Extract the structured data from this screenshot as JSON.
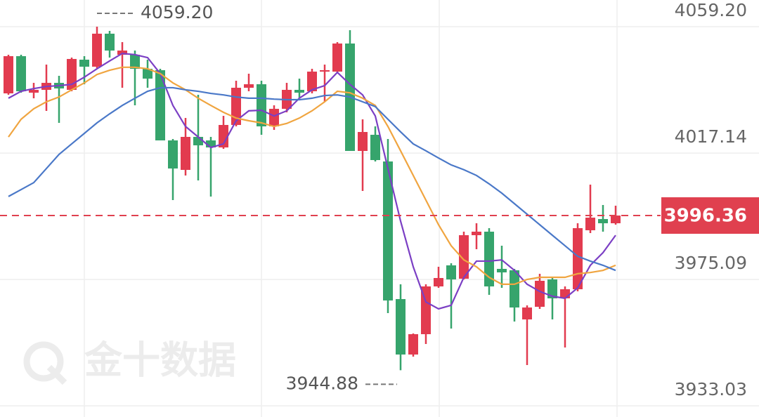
{
  "chart_data": {
    "type": "candlestick",
    "ylim": [
      3929.32,
      4068.08
    ],
    "yticks": [
      {
        "value": 4059.2,
        "label": "4059.20"
      },
      {
        "value": 4017.14,
        "label": "4017.14"
      },
      {
        "value": 3975.09,
        "label": "3975.09"
      },
      {
        "value": 3933.03,
        "label": "3933.03"
      }
    ],
    "grid": true,
    "up_color": "#e23b4f",
    "down_color": "#36a46c",
    "open": [
      4037.01,
      4049.39,
      4037.24,
      4038.18,
      4040.51,
      4038.18,
      4048.22,
      4045.89,
      4056.87,
      4049.86,
      4049.86,
      4045.19,
      4044.72,
      4021.36,
      4011.55,
      4022.53,
      4021.36,
      4019.02,
      4026.5,
      4038.88,
      4040.05,
      4026.03,
      4031.87,
      4038.18,
      4037.71,
      4044.25,
      4044.25,
      4053.6,
      4017.85,
      4023.23,
      4014.35,
      3968.56,
      3950.11,
      3956.88,
      3972.77,
      3979.78,
      3975.34,
      3989.82,
      3990.99,
      3978.61,
      3978.14,
      3961.79,
      3965.99,
      3975.1,
      3968.8,
      3971.83,
      3991.46,
      3995.19,
      3993.79
    ],
    "high": [
      4049.86,
      4049.86,
      4040.51,
      4046.59,
      4042.85,
      4048.92,
      4049.39,
      4059.2,
      4057.8,
      4054.06,
      4051.26,
      4048.22,
      4045.19,
      4021.83,
      4028.83,
      4036.54,
      4022.53,
      4029.53,
      4041.21,
      4043.55,
      4041.21,
      4033.04,
      4040.51,
      4041.92,
      4045.19,
      4046.59,
      4054.06,
      4058.03,
      4028.37,
      4026.03,
      4021.83,
      3973.47,
      3957.12,
      3973.47,
      3979.31,
      3980.48,
      3990.99,
      3993.79,
      3992.16,
      3986.32,
      3978.61,
      3966.46,
      3976.97,
      3975.8,
      3972.77,
      3993.79,
      4006.64,
      3999.87,
      3999.63
    ],
    "low": [
      4036.54,
      4037.24,
      4035.37,
      4031.17,
      4027.2,
      4037.71,
      4040.05,
      4045.42,
      4048.92,
      4038.88,
      4033.04,
      4038.88,
      4021.36,
      4001.5,
      4009.68,
      4008.04,
      4002.67,
      4018.55,
      4026.03,
      4037.71,
      4023.23,
      4024.86,
      4030.7,
      4035.37,
      4037.01,
      4034.21,
      4044.02,
      4017.85,
      4004.54,
      4014.35,
      3963.89,
      3944.88,
      3949.41,
      3953.61,
      3972.3,
      3958.75,
      3975.1,
      3985.15,
      3969.96,
      3972.3,
      3961.09,
      3946.6,
      3965.29,
      3961.79,
      3952.44,
      3971.13,
      3990.52,
      3990.99,
      3993.32
    ],
    "close": [
      4049.39,
      4037.71,
      4038.18,
      4040.51,
      4038.65,
      4048.46,
      4045.89,
      4056.87,
      4051.26,
      4051.26,
      4045.19,
      4041.92,
      4021.36,
      4012.01,
      4022.53,
      4019.72,
      4019.02,
      4026.5,
      4038.88,
      4040.05,
      4026.03,
      4031.87,
      4038.18,
      4037.24,
      4044.25,
      4044.72,
      4053.6,
      4017.85,
      4024.16,
      4014.82,
      3968.09,
      3950.11,
      3956.88,
      3972.77,
      3975.57,
      3975.1,
      3989.82,
      3990.99,
      3972.77,
      3977.44,
      3965.76,
      3965.76,
      3974.64,
      3968.8,
      3971.83,
      3992.16,
      3995.66,
      3993.79,
      3996.36
    ],
    "lines": [
      {
        "color": "#7b3fc4",
        "values": [
          4035.4,
          4037.7,
          4038.6,
          4039.3,
          4039.6,
          4040.0,
          4042.4,
          4045.2,
          4047.8,
          4050.3,
          4049.9,
          4048.9,
          4043.6,
          4033.0,
          4026.0,
          4022.5,
          4019.0,
          4020.2,
          4027.9,
          4031.2,
          4031.4,
          4029.5,
          4031.2,
          4035.4,
          4038.2,
          4039.6,
          4044.0,
          4040.0,
          4036.5,
          4029.5,
          4012.0,
          3994.5,
          3979.3,
          3967.6,
          3965.3,
          3966.5,
          3975.8,
          3981.2,
          3981.2,
          3981.6,
          3978.1,
          3973.5,
          3971.1,
          3969.5,
          3968.8,
          3972.3,
          3979.8,
          3984.0,
          3989.8
        ]
      },
      {
        "color": "#f0a540",
        "values": [
          4022.5,
          4028.4,
          4031.9,
          4034.2,
          4035.8,
          4038.2,
          4040.5,
          4043.3,
          4044.7,
          4045.7,
          4045.7,
          4045.2,
          4043.6,
          4040.5,
          4038.2,
          4035.4,
          4033.0,
          4030.7,
          4028.8,
          4027.9,
          4027.2,
          4026.0,
          4027.0,
          4028.8,
          4031.2,
          4034.2,
          4037.7,
          4037.2,
          4035.4,
          4033.0,
          4026.0,
          4017.9,
          4009.7,
          4001.5,
          3993.3,
          3986.3,
          3981.6,
          3979.3,
          3975.8,
          3973.5,
          3973.5,
          3975.1,
          3975.8,
          3975.8,
          3975.8,
          3977.0,
          3977.4,
          3978.1,
          3979.8
        ]
      },
      {
        "color": "#4a78c8",
        "values": [
          4002.7,
          4005.0,
          4007.3,
          4012.0,
          4016.7,
          4020.2,
          4023.7,
          4027.2,
          4030.2,
          4033.0,
          4035.4,
          4037.7,
          4038.9,
          4038.9,
          4038.2,
          4037.7,
          4037.0,
          4036.5,
          4035.8,
          4035.4,
          4035.4,
          4035.1,
          4034.9,
          4034.9,
          4035.4,
          4036.3,
          4036.5,
          4035.8,
          4034.2,
          4032.6,
          4028.4,
          4024.2,
          4020.2,
          4017.9,
          4015.5,
          4013.2,
          4011.6,
          4009.7,
          4006.9,
          4003.8,
          4000.3,
          3996.8,
          3993.3,
          3989.8,
          3986.3,
          3982.8,
          3981.2,
          3979.8,
          3978.1
        ]
      }
    ],
    "last_price": {
      "value": 3996.36,
      "label": "3996.36",
      "color": "#e0404f"
    },
    "max_annotation": {
      "value": 4059.2,
      "label": "4059.20"
    },
    "min_annotation": {
      "value": 3944.88,
      "label": "3944.88"
    },
    "watermark": "金十数据"
  }
}
